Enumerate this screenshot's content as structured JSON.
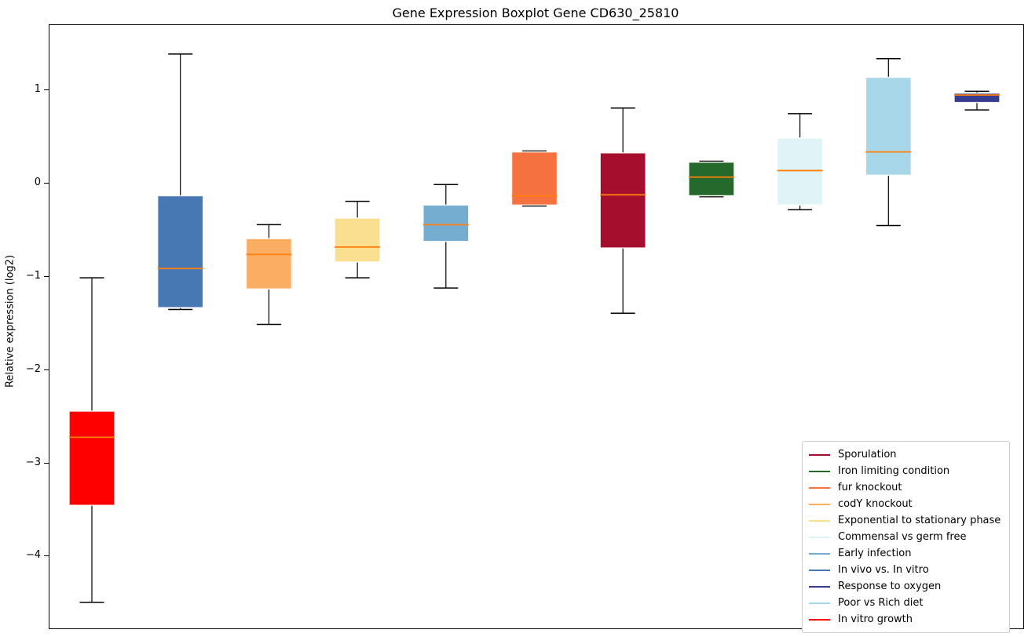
{
  "chart_data": {
    "type": "boxplot",
    "title": "Gene Expression Boxplot Gene CD630_25810",
    "xlabel": "",
    "ylabel": "Relative expression (log2)",
    "ylim": [
      -4.77,
      1.7
    ],
    "yticks": [
      {
        "value": 1,
        "label": "1"
      },
      {
        "value": 0,
        "label": "0"
      },
      {
        "value": -1,
        "label": "−1"
      },
      {
        "value": -2,
        "label": "−2"
      },
      {
        "value": -3,
        "label": "−3"
      },
      {
        "value": -4,
        "label": "−4"
      }
    ],
    "xticklabels": [],
    "grid": false,
    "median_color": "#ff7f0e",
    "whisker_color": "#000000",
    "boxes": [
      {
        "label": "In vitro growth",
        "color": "#ff0000",
        "whisker_low": -4.49,
        "q1": -3.45,
        "median": -2.72,
        "q3": -2.44,
        "whisker_high": -1.01
      },
      {
        "label": "In vivo vs. In vitro",
        "color": "#4878b4",
        "whisker_low": -1.35,
        "q1": -1.33,
        "median": -0.91,
        "q3": -0.13,
        "whisker_high": 1.39
      },
      {
        "label": "codY knockout",
        "color": "#fbad63",
        "whisker_low": -1.51,
        "q1": -1.13,
        "median": -0.76,
        "q3": -0.59,
        "whisker_high": -0.44
      },
      {
        "label": "Exponential to stationary phase",
        "color": "#fbdf90",
        "whisker_low": -1.01,
        "q1": -0.84,
        "median": -0.68,
        "q3": -0.37,
        "whisker_high": -0.19
      },
      {
        "label": "Early infection",
        "color": "#74add0",
        "whisker_low": -1.12,
        "q1": -0.62,
        "median": -0.44,
        "q3": -0.23,
        "whisker_high": -0.01
      },
      {
        "label": "fur knockout",
        "color": "#f5713f",
        "whisker_low": -0.24,
        "q1": -0.23,
        "median": -0.13,
        "q3": 0.34,
        "whisker_high": 0.35
      },
      {
        "label": "Sporulation",
        "color": "#a60e2e",
        "whisker_low": -1.39,
        "q1": -0.69,
        "median": -0.12,
        "q3": 0.33,
        "whisker_high": 0.81
      },
      {
        "label": "Iron limiting condition",
        "color": "#25692c",
        "whisker_low": -0.14,
        "q1": -0.13,
        "median": 0.07,
        "q3": 0.23,
        "whisker_high": 0.24
      },
      {
        "label": "Commensal vs germ free",
        "color": "#e0f3f7",
        "whisker_low": -0.28,
        "q1": -0.23,
        "median": 0.14,
        "q3": 0.49,
        "whisker_high": 0.75
      },
      {
        "label": "Poor vs Rich diet",
        "color": "#a7d7e8",
        "whisker_low": -0.45,
        "q1": 0.09,
        "median": 0.34,
        "q3": 1.14,
        "whisker_high": 1.34
      },
      {
        "label": "Response to oxygen",
        "color": "#383c8f",
        "whisker_low": 0.79,
        "q1": 0.87,
        "median": 0.95,
        "q3": 0.97,
        "whisker_high": 0.99
      }
    ],
    "legend": {
      "position": "lower right",
      "entries": [
        "Sporulation",
        "Iron limiting condition",
        "fur knockout",
        "codY knockout",
        "Exponential to stationary phase",
        "Commensal vs germ free",
        "Early infection",
        "In vivo vs. In vitro",
        "Response to oxygen",
        "Poor vs Rich diet",
        "In vitro growth"
      ]
    }
  }
}
